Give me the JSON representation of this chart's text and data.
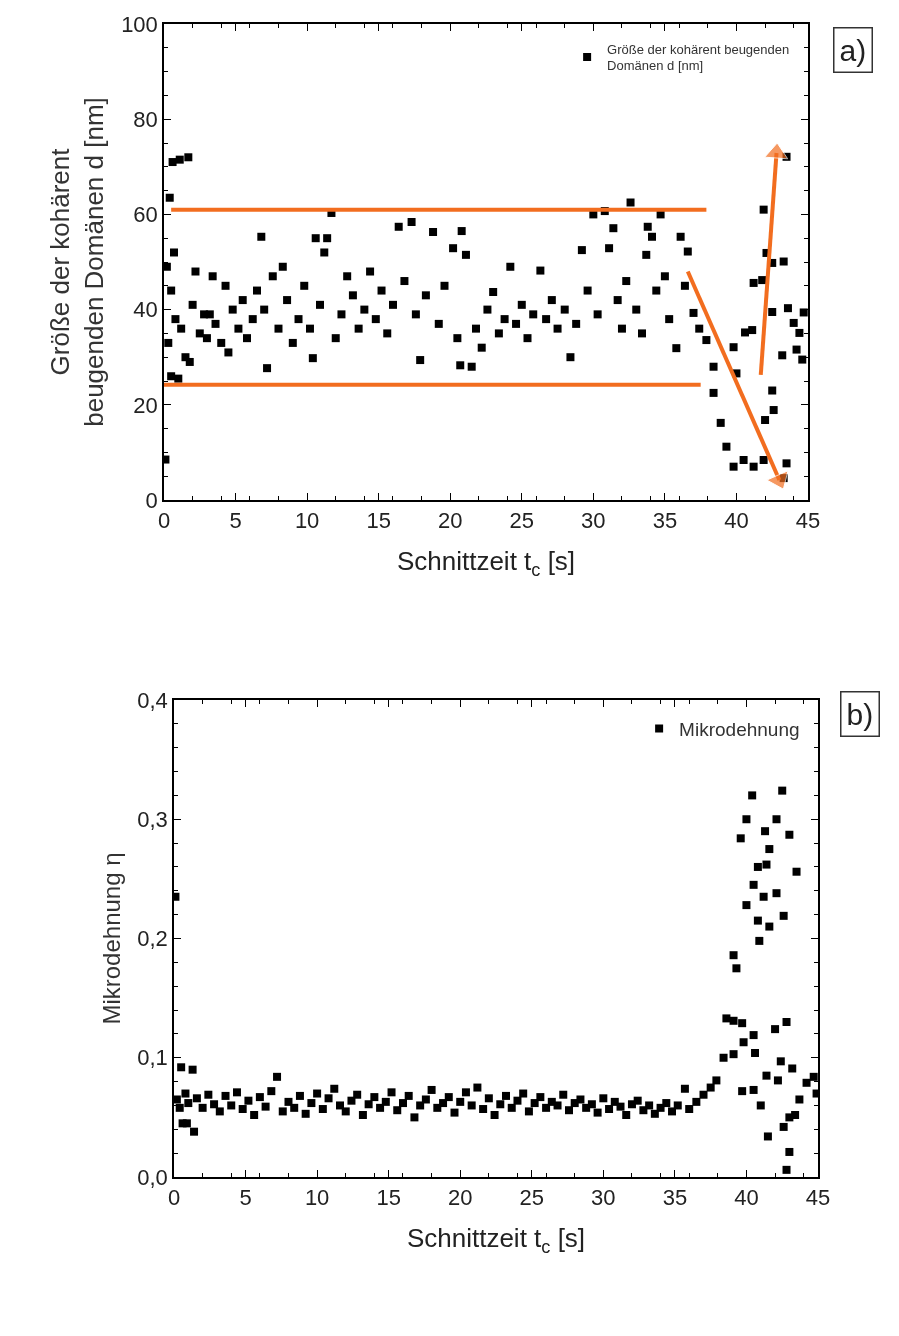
{
  "chart_data": [
    {
      "type": "scatter",
      "xlabel": "Schnittzeit t$_{c}$ [s]",
      "ylabel": "Größe der kohärent\nbeugenden Domänen d [nm]",
      "xlim": [
        0,
        45
      ],
      "xticks": [
        0,
        5,
        10,
        15,
        20,
        25,
        30,
        35,
        40,
        45
      ],
      "ylim": [
        0,
        100
      ],
      "yticks": [
        0,
        20,
        40,
        60,
        80,
        100
      ],
      "grid": false,
      "legend": "top right",
      "marker": "square",
      "annotations": [
        "a)"
      ],
      "series": [
        {
          "name": "Größe der kohärent beugenden\nDomänen d [nm]",
          "color": "#000000",
          "x": [
            0.1,
            0.2,
            0.3,
            0.4,
            0.5,
            0.5,
            0.6,
            0.7,
            0.8,
            1.0,
            1.1,
            1.2,
            1.5,
            1.7,
            1.8,
            2.0,
            2.2,
            2.5,
            2.8,
            3.0,
            3.2,
            3.4,
            3.6,
            4.0,
            4.3,
            4.5,
            4.8,
            5.2,
            5.5,
            5.8,
            6.2,
            6.5,
            6.8,
            7.0,
            7.2,
            7.6,
            8.0,
            8.3,
            8.6,
            9.0,
            9.4,
            9.8,
            10.2,
            10.4,
            10.6,
            10.9,
            11.2,
            11.4,
            11.7,
            12.0,
            12.4,
            12.8,
            13.2,
            13.6,
            14.0,
            14.4,
            14.8,
            15.2,
            15.6,
            16.0,
            16.4,
            16.8,
            17.3,
            17.6,
            17.9,
            18.3,
            18.8,
            19.2,
            19.6,
            20.2,
            20.5,
            20.7,
            20.8,
            21.1,
            21.5,
            21.8,
            22.2,
            22.6,
            23.0,
            23.4,
            23.8,
            24.2,
            24.6,
            25.0,
            25.4,
            25.8,
            26.3,
            26.7,
            27.1,
            27.5,
            28.0,
            28.4,
            28.8,
            29.2,
            29.6,
            30.0,
            30.3,
            30.8,
            31.1,
            31.4,
            31.7,
            32.0,
            32.3,
            32.6,
            33.0,
            33.4,
            33.7,
            33.8,
            34.1,
            34.4,
            34.7,
            35.0,
            35.3,
            35.8,
            36.1,
            36.4,
            36.6,
            37.0,
            37.4,
            37.9,
            38.4,
            38.4,
            38.9,
            39.3,
            39.8,
            39.8,
            40.0,
            40.5,
            40.6,
            41.1,
            41.2,
            41.2,
            41.8,
            41.9,
            41.9,
            42.0,
            42.1,
            42.5,
            42.5,
            42.5,
            42.6,
            43.2,
            43.3,
            43.3,
            43.5,
            43.5,
            43.6,
            44.0,
            44.2,
            44.4,
            44.6,
            44.7
          ],
          "values": [
            8.5,
            49,
            33,
            63.5,
            26,
            44,
            71,
            52,
            38,
            25.5,
            71.5,
            36,
            30,
            72,
            29,
            41,
            48,
            35,
            39,
            34,
            39,
            47,
            37,
            33,
            45,
            31,
            40,
            36,
            42,
            34,
            38,
            44,
            55.3,
            40,
            27.7,
            47,
            36,
            49,
            42,
            33,
            38,
            45,
            36,
            29.8,
            55,
            41,
            52,
            55,
            60.3,
            34,
            39,
            47,
            43,
            36,
            40,
            48,
            38,
            44,
            35,
            41,
            57.4,
            46,
            58.4,
            39,
            29.4,
            43,
            56.3,
            37,
            45,
            52.9,
            34,
            28.3,
            56.5,
            51.5,
            28,
            36,
            32,
            40,
            43.7,
            35,
            38,
            49,
            37,
            41,
            34,
            39,
            48.2,
            38,
            42,
            36,
            40,
            30,
            37,
            52.5,
            44,
            60,
            39,
            60.7,
            52.9,
            57.1,
            42,
            36,
            46,
            62.5,
            40,
            35,
            51.5,
            57.4,
            55.3,
            44,
            60,
            47,
            38,
            31.9,
            55.3,
            45,
            52.2,
            39.3,
            36,
            33.6,
            28,
            22.5,
            16.2,
            11.2,
            7,
            32.1,
            26.6,
            8.4,
            35.2,
            35.7,
            7,
            45.6,
            46.2,
            8.4,
            61,
            16.8,
            51.9,
            23,
            39.5,
            49.8,
            18.9,
            30.4,
            4.6,
            50.1,
            7.7,
            72.1,
            40.3,
            37.2,
            31.6,
            35.1,
            29.5,
            39.4
          ]
        },
        {
          "type": "line",
          "color": "#f26d1f",
          "marker": "none",
          "x": [
            0.5,
            37.9
          ],
          "values": [
            61,
            61
          ]
        },
        {
          "type": "line",
          "color": "#f26d1f",
          "marker": "none",
          "x": [
            0,
            37.5
          ],
          "values": [
            24.2,
            24.2
          ]
        },
        {
          "type": "line",
          "color": "#f26d1f",
          "marker": "triangle",
          "x": [
            36.6,
            43
          ],
          "values": [
            48,
            4.2
          ]
        },
        {
          "type": "line",
          "color": "#f26d1f",
          "marker": "triangle",
          "x": [
            41.7,
            42.8
          ],
          "values": [
            26.3,
            72.9
          ]
        }
      ]
    },
    {
      "type": "scatter",
      "xlabel": "Schnittzeit t$_{c}$ [s]",
      "ylabel": "Mikrodehnung η",
      "xlim": [
        0,
        45
      ],
      "xticks": [
        0,
        5,
        10,
        15,
        20,
        25,
        30,
        35,
        40,
        45
      ],
      "ylim": [
        0,
        0.4
      ],
      "yticks": [
        {
          "value": 0,
          "label": "0,0"
        },
        {
          "value": 0.1,
          "label": "0,1"
        },
        {
          "value": 0.2,
          "label": "0,2"
        },
        {
          "value": 0.3,
          "label": "0,3"
        },
        {
          "value": 0.4,
          "label": "0,4"
        }
      ],
      "grid": false,
      "legend": "top right",
      "marker": "square",
      "annotations": [
        "b)"
      ],
      "series": [
        {
          "name": "Mikrodehnung",
          "color": "#000000",
          "x": [
            0.1,
            0.2,
            0.4,
            0.5,
            0.6,
            0.8,
            0.9,
            1.0,
            1.3,
            1.4,
            1.6,
            2.0,
            2.4,
            2.8,
            3.2,
            3.6,
            4.0,
            4.4,
            4.8,
            5.2,
            5.6,
            6.0,
            6.4,
            6.8,
            7.2,
            7.6,
            8.0,
            8.4,
            8.8,
            9.2,
            9.6,
            10.0,
            10.4,
            10.8,
            11.2,
            11.6,
            12.0,
            12.4,
            12.8,
            13.2,
            13.6,
            14.0,
            14.4,
            14.8,
            15.2,
            15.6,
            16.0,
            16.4,
            16.8,
            17.2,
            17.6,
            18.0,
            18.4,
            18.8,
            19.2,
            19.6,
            20.0,
            20.4,
            20.8,
            21.2,
            21.6,
            22.0,
            22.4,
            22.8,
            23.2,
            23.6,
            24.0,
            24.4,
            24.8,
            25.2,
            25.6,
            26.0,
            26.4,
            26.8,
            27.2,
            27.6,
            28.0,
            28.4,
            28.8,
            29.2,
            29.6,
            30.0,
            30.4,
            30.8,
            31.2,
            31.6,
            32.0,
            32.4,
            32.8,
            33.2,
            33.6,
            34.0,
            34.4,
            34.8,
            35.2,
            35.7,
            36.0,
            36.5,
            37.0,
            37.5,
            37.9,
            38.4,
            38.6,
            39.1,
            39.1,
            39.1,
            39.3,
            39.6,
            39.7,
            39.7,
            39.8,
            40.0,
            40.0,
            40.4,
            40.5,
            40.5,
            40.5,
            40.6,
            40.8,
            40.8,
            40.9,
            41.0,
            41.2,
            41.3,
            41.4,
            41.4,
            41.5,
            41.6,
            41.6,
            42.0,
            42.1,
            42.1,
            42.2,
            42.4,
            42.5,
            42.6,
            42.6,
            42.8,
            42.8,
            43.0,
            43.0,
            43.0,
            43.2,
            43.4,
            43.5,
            43.7,
            44.2,
            44.7,
            44.9
          ],
          "values": [
            0.235,
            0.065,
            0.058,
            0.092,
            0.045,
            0.07,
            0.045,
            0.062,
            0.09,
            0.038,
            0.066,
            0.058,
            0.069,
            0.061,
            0.055,
            0.068,
            0.06,
            0.071,
            0.057,
            0.064,
            0.052,
            0.067,
            0.059,
            0.072,
            0.084,
            0.055,
            0.063,
            0.058,
            0.068,
            0.053,
            0.062,
            0.07,
            0.057,
            0.066,
            0.074,
            0.06,
            0.055,
            0.064,
            0.069,
            0.052,
            0.061,
            0.067,
            0.058,
            0.063,
            0.071,
            0.056,
            0.062,
            0.068,
            0.05,
            0.06,
            0.065,
            0.073,
            0.058,
            0.062,
            0.067,
            0.054,
            0.063,
            0.071,
            0.06,
            0.075,
            0.057,
            0.066,
            0.052,
            0.061,
            0.068,
            0.058,
            0.064,
            0.07,
            0.055,
            0.062,
            0.067,
            0.058,
            0.063,
            0.06,
            0.069,
            0.056,
            0.062,
            0.065,
            0.058,
            0.061,
            0.054,
            0.066,
            0.057,
            0.063,
            0.059,
            0.052,
            0.061,
            0.064,
            0.056,
            0.06,
            0.053,
            0.058,
            0.062,
            0.055,
            0.06,
            0.074,
            0.057,
            0.063,
            0.069,
            0.075,
            0.081,
            0.1,
            0.133,
            0.131,
            0.103,
            0.186,
            0.175,
            0.284,
            0.129,
            0.072,
            0.113,
            0.3,
            0.228,
            0.32,
            0.245,
            0.119,
            0.073,
            0.104,
            0.26,
            0.215,
            0.198,
            0.06,
            0.235,
            0.29,
            0.262,
            0.085,
            0.034,
            0.275,
            0.21,
            0.124,
            0.3,
            0.238,
            0.081,
            0.097,
            0.324,
            0.219,
            0.042,
            0.13,
            0.006,
            0.287,
            0.021,
            0.05,
            0.091,
            0.052,
            0.256,
            0.065,
            0.079,
            0.084,
            0.07
          ]
        }
      ]
    }
  ]
}
